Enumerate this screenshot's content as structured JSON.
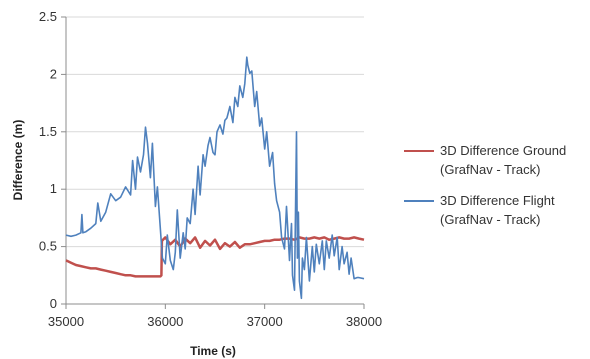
{
  "chart_data": {
    "type": "line",
    "xlabel": "Time (s)",
    "ylabel": "Difference (m)",
    "xlim": [
      35000,
      38000
    ],
    "ylim": [
      0,
      2.5
    ],
    "xticks": [
      "35000",
      "36000",
      "37000",
      "38000"
    ],
    "yticks": [
      "0",
      "0.5",
      "1",
      "1.5",
      "2",
      "2.5"
    ],
    "grid": "horizontal",
    "legend_position": "right",
    "series": [
      {
        "name": "3D Difference Ground (GrafNav - Track)",
        "line1": "3D Difference Ground",
        "line2": "(GrafNav - Track)",
        "color": "#C0504D",
        "x": [
          35000,
          35050,
          35100,
          35150,
          35200,
          35250,
          35300,
          35350,
          35400,
          35450,
          35500,
          35550,
          35600,
          35650,
          35700,
          35750,
          35800,
          35850,
          35900,
          35950,
          35960,
          35965,
          36000,
          36050,
          36100,
          36150,
          36200,
          36250,
          36300,
          36350,
          36400,
          36450,
          36500,
          36550,
          36600,
          36650,
          36700,
          36750,
          36800,
          36850,
          36900,
          36950,
          37000,
          37050,
          37100,
          37150,
          37200,
          37250,
          37300,
          37350,
          37400,
          37450,
          37500,
          37550,
          37600,
          37650,
          37700,
          37750,
          37800,
          37850,
          37900,
          37950,
          38000
        ],
        "values": [
          0.38,
          0.36,
          0.34,
          0.33,
          0.32,
          0.31,
          0.31,
          0.3,
          0.29,
          0.28,
          0.27,
          0.26,
          0.25,
          0.25,
          0.24,
          0.24,
          0.24,
          0.24,
          0.24,
          0.24,
          0.25,
          0.55,
          0.58,
          0.52,
          0.56,
          0.5,
          0.57,
          0.53,
          0.58,
          0.49,
          0.55,
          0.51,
          0.56,
          0.48,
          0.53,
          0.5,
          0.54,
          0.49,
          0.52,
          0.52,
          0.53,
          0.54,
          0.55,
          0.55,
          0.56,
          0.56,
          0.57,
          0.57,
          0.56,
          0.58,
          0.57,
          0.57,
          0.58,
          0.57,
          0.58,
          0.56,
          0.57,
          0.58,
          0.57,
          0.57,
          0.58,
          0.57,
          0.56
        ]
      },
      {
        "name": "3D Difference Flight (GrafNav - Track)",
        "line1": "3D Difference Flight",
        "line2": "(GrafNav - Track)",
        "color": "#4F81BD",
        "x": [
          35000,
          35050,
          35100,
          35150,
          35160,
          35170,
          35200,
          35250,
          35300,
          35320,
          35350,
          35400,
          35450,
          35500,
          35550,
          35600,
          35650,
          35670,
          35700,
          35720,
          35750,
          35780,
          35800,
          35820,
          35850,
          35870,
          35900,
          35920,
          35950,
          35970,
          36000,
          36020,
          36050,
          36080,
          36100,
          36120,
          36150,
          36180,
          36200,
          36220,
          36250,
          36280,
          36300,
          36330,
          36350,
          36380,
          36400,
          36430,
          36450,
          36480,
          36500,
          36520,
          36550,
          36580,
          36600,
          36620,
          36650,
          36680,
          36700,
          36730,
          36750,
          36780,
          36800,
          36820,
          36830,
          36850,
          36870,
          36900,
          36920,
          36950,
          36970,
          37000,
          37020,
          37050,
          37080,
          37100,
          37120,
          37150,
          37170,
          37200,
          37220,
          37250,
          37270,
          37280,
          37300,
          37320,
          37330,
          37340,
          37350,
          37370,
          37380,
          37400,
          37420,
          37450,
          37480,
          37500,
          37520,
          37550,
          37580,
          37600,
          37620,
          37650,
          37680,
          37700,
          37730,
          37750,
          37780,
          37800,
          37830,
          37850,
          37870,
          37900,
          37930,
          37950,
          38000
        ],
        "values": [
          0.6,
          0.59,
          0.6,
          0.62,
          0.78,
          0.62,
          0.63,
          0.66,
          0.7,
          0.88,
          0.72,
          0.8,
          0.96,
          0.9,
          0.93,
          1.02,
          0.95,
          1.25,
          1.0,
          1.28,
          1.15,
          1.3,
          1.54,
          1.4,
          1.1,
          1.4,
          0.85,
          1.02,
          0.65,
          0.4,
          0.35,
          0.6,
          0.38,
          0.3,
          0.45,
          0.82,
          0.4,
          0.62,
          0.48,
          0.75,
          0.7,
          1.0,
          0.78,
          1.2,
          0.95,
          1.3,
          1.2,
          1.38,
          1.45,
          1.32,
          1.3,
          1.5,
          1.56,
          1.48,
          1.6,
          1.62,
          1.72,
          1.58,
          1.8,
          1.72,
          1.9,
          1.8,
          1.92,
          2.15,
          2.08,
          2.01,
          2.03,
          1.72,
          1.85,
          1.55,
          1.62,
          1.35,
          1.5,
          1.2,
          1.32,
          1.05,
          0.9,
          0.8,
          0.58,
          0.48,
          0.85,
          0.38,
          0.7,
          0.25,
          0.12,
          1.5,
          0.4,
          0.8,
          0.2,
          0.05,
          0.4,
          0.3,
          0.58,
          0.2,
          0.5,
          0.28,
          0.52,
          0.35,
          0.55,
          0.3,
          0.55,
          0.4,
          0.6,
          0.42,
          0.58,
          0.3,
          0.5,
          0.35,
          0.45,
          0.26,
          0.4,
          0.22,
          0.23,
          0.23,
          0.22
        ]
      }
    ]
  }
}
